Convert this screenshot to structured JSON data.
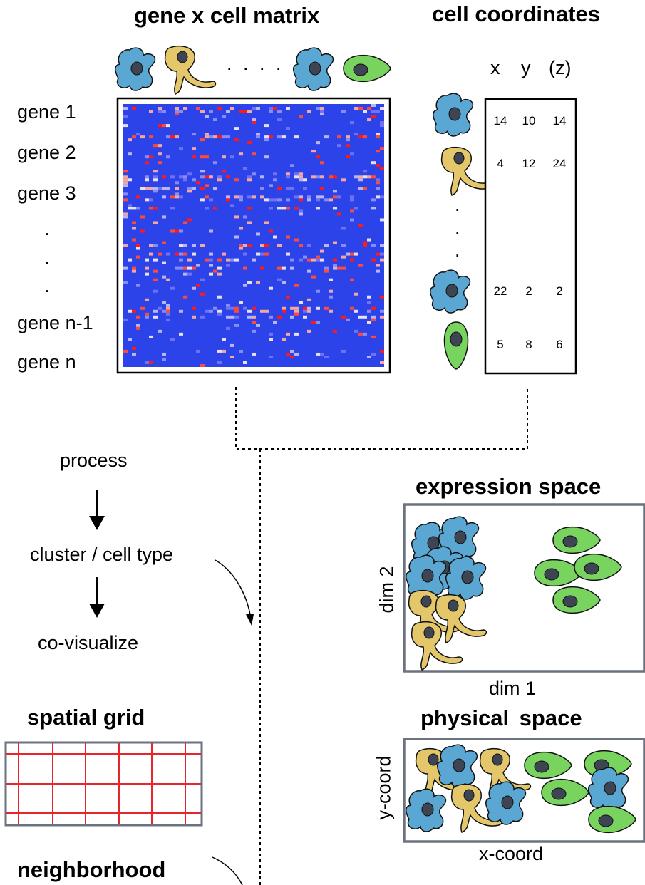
{
  "matrix": {
    "title": "gene x cell matrix",
    "gene_labels": [
      "gene 1",
      "gene 2",
      "gene 3",
      ".",
      ".",
      ".",
      "gene n-1",
      "gene n"
    ],
    "header_dots": ". . . ."
  },
  "coordinates": {
    "title": "cell coordinates",
    "headers": [
      "x",
      "y",
      "(z)"
    ],
    "rows": [
      [
        "14",
        "10",
        "14"
      ],
      [
        "4",
        "12",
        "24"
      ],
      [
        "22",
        "2",
        "2"
      ],
      [
        "5",
        "8",
        "6"
      ]
    ],
    "vdots": [
      ".",
      ".",
      "."
    ]
  },
  "pipeline": {
    "steps": [
      "process",
      "cluster / cell type",
      "co-visualize"
    ]
  },
  "expression_space": {
    "title": "expression space",
    "xlabel": "dim 1",
    "ylabel": "dim 2"
  },
  "physical_space": {
    "title": "physical  space",
    "xlabel": "x-coord",
    "ylabel": "y-coord"
  },
  "spatial_grid": {
    "title": "spatial grid"
  },
  "neighborhood": {
    "title": "neighborhood"
  },
  "colors": {
    "heatmap_low": "#2b43e8",
    "heatmap_high": "#ff1a1a",
    "cell_blue": "#5aa7d3",
    "cell_yellow": "#e3c76a",
    "cell_green": "#79d45f",
    "nucleus": "#3d4452",
    "grid_line": "#e8242c",
    "panel_border": "#6b7280"
  }
}
